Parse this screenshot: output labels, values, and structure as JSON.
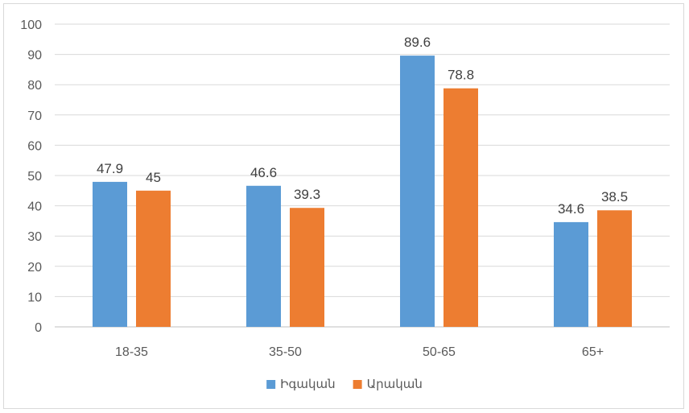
{
  "chart_data": {
    "type": "bar",
    "categories": [
      "18-35",
      "35-50",
      "50-65",
      "65+"
    ],
    "series": [
      {
        "name": "Իգական",
        "values": [
          47.9,
          46.6,
          89.6,
          34.6
        ],
        "color": "#5B9BD5"
      },
      {
        "name": "Արական",
        "values": [
          45,
          39.3,
          78.8,
          38.5
        ],
        "color": "#ED7D31"
      }
    ],
    "ylim": [
      0,
      100
    ],
    "yticks": [
      0,
      10,
      20,
      30,
      40,
      50,
      60,
      70,
      80,
      90,
      100
    ],
    "grid": true,
    "legend_position": "bottom",
    "title": "",
    "xlabel": "",
    "ylabel": ""
  }
}
